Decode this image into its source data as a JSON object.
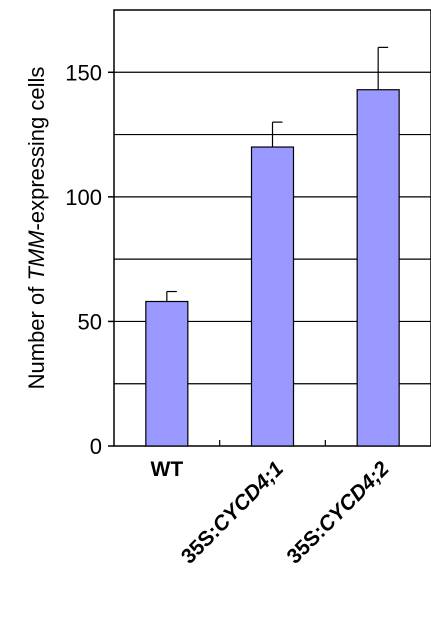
{
  "chart_data": {
    "type": "bar",
    "categories": [
      "WT",
      "35S:CYCD4;1",
      "35S:CYCD4;2"
    ],
    "category_parts": [
      [
        "WT",
        ""
      ],
      [
        "35S:",
        "CYCD4;1"
      ],
      [
        "35S:",
        "CYCD4;2"
      ]
    ],
    "values": [
      58,
      120,
      143
    ],
    "error": [
      4,
      10,
      17
    ],
    "ylabel_parts": [
      "Number of ",
      "TMM",
      "-expressing cells"
    ],
    "ylim": [
      0,
      175
    ],
    "yticks": [
      0,
      50,
      100,
      150
    ],
    "gridlines": [
      25,
      50,
      75,
      100,
      125,
      150
    ],
    "grid": true,
    "bar_color": "#9999ff",
    "bar_edge": "#000000"
  }
}
